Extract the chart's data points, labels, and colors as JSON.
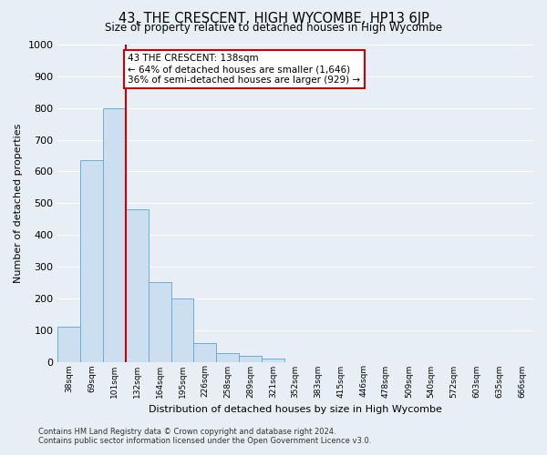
{
  "title": "43, THE CRESCENT, HIGH WYCOMBE, HP13 6JP",
  "subtitle": "Size of property relative to detached houses in High Wycombe",
  "xlabel": "Distribution of detached houses by size in High Wycombe",
  "ylabel": "Number of detached properties",
  "bin_labels": [
    "38sqm",
    "69sqm",
    "101sqm",
    "132sqm",
    "164sqm",
    "195sqm",
    "226sqm",
    "258sqm",
    "289sqm",
    "321sqm",
    "352sqm",
    "383sqm",
    "415sqm",
    "446sqm",
    "478sqm",
    "509sqm",
    "540sqm",
    "572sqm",
    "603sqm",
    "635sqm",
    "666sqm"
  ],
  "bar_values": [
    110,
    635,
    800,
    480,
    250,
    200,
    60,
    28,
    18,
    10,
    0,
    0,
    0,
    0,
    0,
    0,
    0,
    0,
    0,
    0,
    0
  ],
  "bar_color": "#ccdff0",
  "bar_edge_color": "#6aaed6",
  "ylim": [
    0,
    1000
  ],
  "yticks": [
    0,
    100,
    200,
    300,
    400,
    500,
    600,
    700,
    800,
    900,
    1000
  ],
  "property_line_color": "#cc0000",
  "annotation_title": "43 THE CRESCENT: 138sqm",
  "annotation_line1": "← 64% of detached houses are smaller (1,646)",
  "annotation_line2": "36% of semi-detached houses are larger (929) →",
  "annotation_box_color": "#cc0000",
  "footer_line1": "Contains HM Land Registry data © Crown copyright and database right 2024.",
  "footer_line2": "Contains public sector information licensed under the Open Government Licence v3.0.",
  "bg_color": "#e8eef5",
  "plot_bg_color": "#e8eef5",
  "grid_color": "#ffffff"
}
